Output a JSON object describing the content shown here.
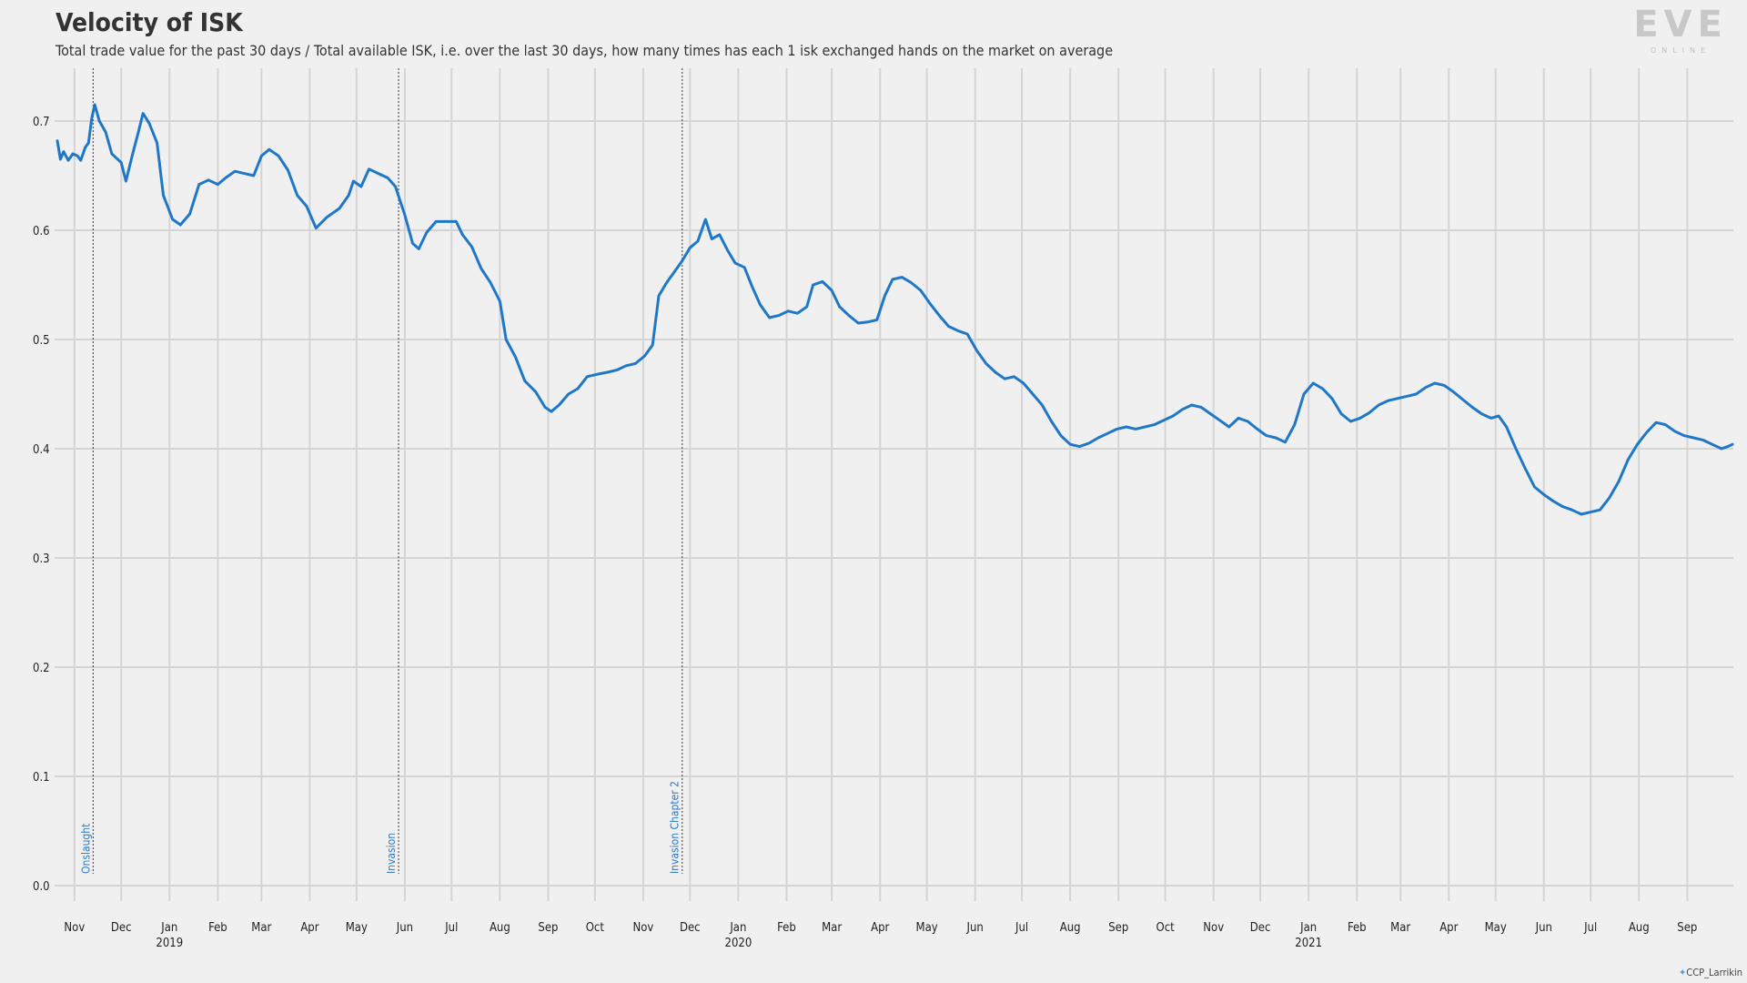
{
  "header": {
    "title": "Velocity of ISK",
    "subtitle": "Total trade value for the past 30 days / Total available ISK, i.e. over the last 30 days, how many times has each 1 isk exchanged hands on the market on average"
  },
  "logo": {
    "word": "EVE",
    "tag": "ONLINE"
  },
  "credit": "CCP_Larrikin",
  "colors": {
    "line": "#1f77c8",
    "grid": "#d4d4d4",
    "background": "#f0f0f0",
    "event_label": "#2a7ad0"
  },
  "chart_data": {
    "type": "line",
    "title": "Velocity of ISK",
    "subtitle": "Total trade value for the past 30 days / Total available ISK, i.e. over the last 30 days, how many times has each 1 isk exchanged hands on the market on average",
    "xlabel": "",
    "ylabel": "",
    "xlim": [
      "2018-10-21",
      "2021-09-30"
    ],
    "ylim": [
      -0.01,
      0.75
    ],
    "grid": true,
    "legend": "none",
    "y_ticks": [
      0.0,
      0.1,
      0.2,
      0.3,
      0.4,
      0.5,
      0.6,
      0.7
    ],
    "y_tick_labels": [
      "0.0",
      "0.1",
      "0.2",
      "0.3",
      "0.4",
      "0.5",
      "0.6",
      "0.7"
    ],
    "x_ticks": [
      {
        "date": "2018-11-01",
        "label": "Nov",
        "year": ""
      },
      {
        "date": "2018-12-01",
        "label": "Dec",
        "year": ""
      },
      {
        "date": "2019-01-01",
        "label": "Jan",
        "year": "2019"
      },
      {
        "date": "2019-02-01",
        "label": "Feb",
        "year": ""
      },
      {
        "date": "2019-03-01",
        "label": "Mar",
        "year": ""
      },
      {
        "date": "2019-04-01",
        "label": "Apr",
        "year": ""
      },
      {
        "date": "2019-05-01",
        "label": "May",
        "year": ""
      },
      {
        "date": "2019-06-01",
        "label": "Jun",
        "year": ""
      },
      {
        "date": "2019-07-01",
        "label": "Jul",
        "year": ""
      },
      {
        "date": "2019-08-01",
        "label": "Aug",
        "year": ""
      },
      {
        "date": "2019-09-01",
        "label": "Sep",
        "year": ""
      },
      {
        "date": "2019-10-01",
        "label": "Oct",
        "year": ""
      },
      {
        "date": "2019-11-01",
        "label": "Nov",
        "year": ""
      },
      {
        "date": "2019-12-01",
        "label": "Dec",
        "year": ""
      },
      {
        "date": "2020-01-01",
        "label": "Jan",
        "year": "2020"
      },
      {
        "date": "2020-02-01",
        "label": "Feb",
        "year": ""
      },
      {
        "date": "2020-03-01",
        "label": "Mar",
        "year": ""
      },
      {
        "date": "2020-04-01",
        "label": "Apr",
        "year": ""
      },
      {
        "date": "2020-05-01",
        "label": "May",
        "year": ""
      },
      {
        "date": "2020-06-01",
        "label": "Jun",
        "year": ""
      },
      {
        "date": "2020-07-01",
        "label": "Jul",
        "year": ""
      },
      {
        "date": "2020-08-01",
        "label": "Aug",
        "year": ""
      },
      {
        "date": "2020-09-01",
        "label": "Sep",
        "year": ""
      },
      {
        "date": "2020-10-01",
        "label": "Oct",
        "year": ""
      },
      {
        "date": "2020-11-01",
        "label": "Nov",
        "year": ""
      },
      {
        "date": "2020-12-01",
        "label": "Dec",
        "year": ""
      },
      {
        "date": "2021-01-01",
        "label": "Jan",
        "year": "2021"
      },
      {
        "date": "2021-02-01",
        "label": "Feb",
        "year": ""
      },
      {
        "date": "2021-03-01",
        "label": "Mar",
        "year": ""
      },
      {
        "date": "2021-04-01",
        "label": "Apr",
        "year": ""
      },
      {
        "date": "2021-05-01",
        "label": "May",
        "year": ""
      },
      {
        "date": "2021-06-01",
        "label": "Jun",
        "year": ""
      },
      {
        "date": "2021-07-01",
        "label": "Jul",
        "year": ""
      },
      {
        "date": "2021-08-01",
        "label": "Aug",
        "year": ""
      },
      {
        "date": "2021-09-01",
        "label": "Sep",
        "year": ""
      }
    ],
    "events": [
      {
        "date": "2018-11-13",
        "label": "Onslaught"
      },
      {
        "date": "2019-05-28",
        "label": "Invasion"
      },
      {
        "date": "2019-11-26",
        "label": "Invasion Chapter 2"
      }
    ],
    "series": [
      {
        "name": "",
        "points": [
          [
            "2018-10-21",
            0.682
          ],
          [
            "2018-10-23",
            0.665
          ],
          [
            "2018-10-25",
            0.672
          ],
          [
            "2018-10-28",
            0.664
          ],
          [
            "2018-10-31",
            0.67
          ],
          [
            "2018-11-03",
            0.668
          ],
          [
            "2018-11-05",
            0.664
          ],
          [
            "2018-11-08",
            0.676
          ],
          [
            "2018-11-10",
            0.68
          ],
          [
            "2018-11-12",
            0.702
          ],
          [
            "2018-11-14",
            0.715
          ],
          [
            "2018-11-17",
            0.7
          ],
          [
            "2018-11-21",
            0.69
          ],
          [
            "2018-11-25",
            0.67
          ],
          [
            "2018-12-01",
            0.662
          ],
          [
            "2018-12-04",
            0.645
          ],
          [
            "2018-12-08",
            0.668
          ],
          [
            "2018-12-12",
            0.69
          ],
          [
            "2018-12-15",
            0.707
          ],
          [
            "2018-12-19",
            0.698
          ],
          [
            "2018-12-24",
            0.68
          ],
          [
            "2018-12-28",
            0.632
          ],
          [
            "2019-01-03",
            0.61
          ],
          [
            "2019-01-08",
            0.605
          ],
          [
            "2019-01-14",
            0.615
          ],
          [
            "2019-01-20",
            0.642
          ],
          [
            "2019-01-26",
            0.646
          ],
          [
            "2019-02-01",
            0.642
          ],
          [
            "2019-02-06",
            0.648
          ],
          [
            "2019-02-12",
            0.654
          ],
          [
            "2019-02-18",
            0.652
          ],
          [
            "2019-02-24",
            0.65
          ],
          [
            "2019-03-01",
            0.668
          ],
          [
            "2019-03-06",
            0.674
          ],
          [
            "2019-03-12",
            0.668
          ],
          [
            "2019-03-18",
            0.655
          ],
          [
            "2019-03-24",
            0.632
          ],
          [
            "2019-03-30",
            0.622
          ],
          [
            "2019-04-05",
            0.602
          ],
          [
            "2019-04-12",
            0.612
          ],
          [
            "2019-04-20",
            0.62
          ],
          [
            "2019-04-26",
            0.632
          ],
          [
            "2019-04-29",
            0.645
          ],
          [
            "2019-05-04",
            0.64
          ],
          [
            "2019-05-09",
            0.656
          ],
          [
            "2019-05-15",
            0.652
          ],
          [
            "2019-05-21",
            0.648
          ],
          [
            "2019-05-26",
            0.64
          ],
          [
            "2019-06-01",
            0.614
          ],
          [
            "2019-06-06",
            0.588
          ],
          [
            "2019-06-10",
            0.583
          ],
          [
            "2019-06-15",
            0.598
          ],
          [
            "2019-06-21",
            0.608
          ],
          [
            "2019-06-27",
            0.608
          ],
          [
            "2019-07-04",
            0.608
          ],
          [
            "2019-07-08",
            0.596
          ],
          [
            "2019-07-14",
            0.585
          ],
          [
            "2019-07-20",
            0.565
          ],
          [
            "2019-07-26",
            0.552
          ],
          [
            "2019-08-01",
            0.535
          ],
          [
            "2019-08-05",
            0.5
          ],
          [
            "2019-08-11",
            0.484
          ],
          [
            "2019-08-17",
            0.462
          ],
          [
            "2019-08-24",
            0.452
          ],
          [
            "2019-08-30",
            0.438
          ],
          [
            "2019-09-03",
            0.434
          ],
          [
            "2019-09-08",
            0.44
          ],
          [
            "2019-09-14",
            0.45
          ],
          [
            "2019-09-20",
            0.455
          ],
          [
            "2019-09-26",
            0.466
          ],
          [
            "2019-10-02",
            0.468
          ],
          [
            "2019-10-09",
            0.47
          ],
          [
            "2019-10-15",
            0.472
          ],
          [
            "2019-10-21",
            0.476
          ],
          [
            "2019-10-27",
            0.478
          ],
          [
            "2019-11-02",
            0.485
          ],
          [
            "2019-11-07",
            0.495
          ],
          [
            "2019-11-11",
            0.54
          ],
          [
            "2019-11-16",
            0.552
          ],
          [
            "2019-11-21",
            0.562
          ],
          [
            "2019-11-26",
            0.572
          ],
          [
            "2019-12-01",
            0.584
          ],
          [
            "2019-12-06",
            0.59
          ],
          [
            "2019-12-11",
            0.61
          ],
          [
            "2019-12-15",
            0.592
          ],
          [
            "2019-12-20",
            0.596
          ],
          [
            "2019-12-25",
            0.582
          ],
          [
            "2019-12-30",
            0.57
          ],
          [
            "2020-01-05",
            0.566
          ],
          [
            "2020-01-10",
            0.548
          ],
          [
            "2020-01-15",
            0.532
          ],
          [
            "2020-01-21",
            0.52
          ],
          [
            "2020-01-27",
            0.522
          ],
          [
            "2020-02-02",
            0.526
          ],
          [
            "2020-02-08",
            0.524
          ],
          [
            "2020-02-14",
            0.53
          ],
          [
            "2020-02-18",
            0.55
          ],
          [
            "2020-02-24",
            0.553
          ],
          [
            "2020-03-01",
            0.545
          ],
          [
            "2020-03-06",
            0.53
          ],
          [
            "2020-03-12",
            0.522
          ],
          [
            "2020-03-18",
            0.515
          ],
          [
            "2020-03-24",
            0.516
          ],
          [
            "2020-03-30",
            0.518
          ],
          [
            "2020-04-04",
            0.54
          ],
          [
            "2020-04-09",
            0.555
          ],
          [
            "2020-04-15",
            0.557
          ],
          [
            "2020-04-21",
            0.552
          ],
          [
            "2020-04-27",
            0.545
          ],
          [
            "2020-05-03",
            0.533
          ],
          [
            "2020-05-09",
            0.522
          ],
          [
            "2020-05-15",
            0.512
          ],
          [
            "2020-05-21",
            0.508
          ],
          [
            "2020-05-27",
            0.505
          ],
          [
            "2020-06-02",
            0.49
          ],
          [
            "2020-06-08",
            0.478
          ],
          [
            "2020-06-14",
            0.47
          ],
          [
            "2020-06-20",
            0.464
          ],
          [
            "2020-06-26",
            0.466
          ],
          [
            "2020-07-02",
            0.46
          ],
          [
            "2020-07-08",
            0.45
          ],
          [
            "2020-07-14",
            0.44
          ],
          [
            "2020-07-20",
            0.425
          ],
          [
            "2020-07-26",
            0.412
          ],
          [
            "2020-08-01",
            0.404
          ],
          [
            "2020-08-07",
            0.402
          ],
          [
            "2020-08-13",
            0.405
          ],
          [
            "2020-08-19",
            0.41
          ],
          [
            "2020-08-25",
            0.414
          ],
          [
            "2020-08-31",
            0.418
          ],
          [
            "2020-09-06",
            0.42
          ],
          [
            "2020-09-12",
            0.418
          ],
          [
            "2020-09-18",
            0.42
          ],
          [
            "2020-09-24",
            0.422
          ],
          [
            "2020-09-30",
            0.426
          ],
          [
            "2020-10-06",
            0.43
          ],
          [
            "2020-10-12",
            0.436
          ],
          [
            "2020-10-18",
            0.44
          ],
          [
            "2020-10-24",
            0.438
          ],
          [
            "2020-10-30",
            0.432
          ],
          [
            "2020-11-05",
            0.426
          ],
          [
            "2020-11-11",
            0.42
          ],
          [
            "2020-11-17",
            0.428
          ],
          [
            "2020-11-23",
            0.425
          ],
          [
            "2020-11-29",
            0.418
          ],
          [
            "2020-12-05",
            0.412
          ],
          [
            "2020-12-11",
            0.41
          ],
          [
            "2020-12-17",
            0.406
          ],
          [
            "2020-12-23",
            0.422
          ],
          [
            "2020-12-29",
            0.45
          ],
          [
            "2021-01-04",
            0.46
          ],
          [
            "2021-01-10",
            0.455
          ],
          [
            "2021-01-16",
            0.446
          ],
          [
            "2021-01-22",
            0.432
          ],
          [
            "2021-01-28",
            0.425
          ],
          [
            "2021-02-03",
            0.428
          ],
          [
            "2021-02-09",
            0.433
          ],
          [
            "2021-02-15",
            0.44
          ],
          [
            "2021-02-21",
            0.444
          ],
          [
            "2021-02-27",
            0.446
          ],
          [
            "2021-03-05",
            0.448
          ],
          [
            "2021-03-11",
            0.45
          ],
          [
            "2021-03-17",
            0.456
          ],
          [
            "2021-03-23",
            0.46
          ],
          [
            "2021-03-29",
            0.458
          ],
          [
            "2021-04-04",
            0.452
          ],
          [
            "2021-04-10",
            0.445
          ],
          [
            "2021-04-16",
            0.438
          ],
          [
            "2021-04-22",
            0.432
          ],
          [
            "2021-04-28",
            0.428
          ],
          [
            "2021-05-03",
            0.43
          ],
          [
            "2021-05-08",
            0.42
          ],
          [
            "2021-05-14",
            0.4
          ],
          [
            "2021-05-20",
            0.382
          ],
          [
            "2021-05-26",
            0.365
          ],
          [
            "2021-06-01",
            0.358
          ],
          [
            "2021-06-07",
            0.352
          ],
          [
            "2021-06-13",
            0.347
          ],
          [
            "2021-06-19",
            0.344
          ],
          [
            "2021-06-25",
            0.34
          ],
          [
            "2021-07-01",
            0.342
          ],
          [
            "2021-07-07",
            0.344
          ],
          [
            "2021-07-13",
            0.355
          ],
          [
            "2021-07-19",
            0.37
          ],
          [
            "2021-07-25",
            0.39
          ],
          [
            "2021-07-31",
            0.404
          ],
          [
            "2021-08-06",
            0.415
          ],
          [
            "2021-08-12",
            0.424
          ],
          [
            "2021-08-18",
            0.422
          ],
          [
            "2021-08-24",
            0.416
          ],
          [
            "2021-08-30",
            0.412
          ],
          [
            "2021-09-05",
            0.41
          ],
          [
            "2021-09-11",
            0.408
          ],
          [
            "2021-09-17",
            0.404
          ],
          [
            "2021-09-23",
            0.4
          ],
          [
            "2021-09-27",
            0.402
          ],
          [
            "2021-09-30",
            0.404
          ]
        ]
      }
    ]
  }
}
